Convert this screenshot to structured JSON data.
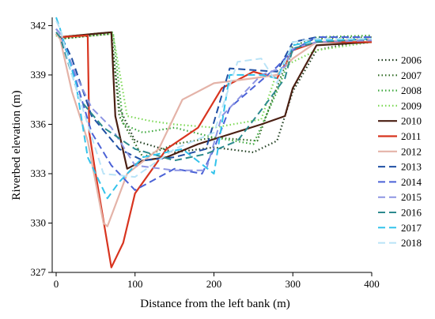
{
  "chart_data": {
    "type": "line",
    "title": "",
    "xlabel": "Distance from the left bank (m)",
    "ylabel": "Riverbed elevation (m)",
    "xlim": [
      -5,
      400
    ],
    "ylim": [
      327,
      342.5
    ],
    "xticks": [
      0,
      100,
      200,
      300,
      400
    ],
    "yticks": [
      327,
      330,
      333,
      336,
      339,
      342
    ],
    "grid": false,
    "legend_position": "right",
    "series": [
      {
        "name": "2006",
        "color": "#1f3d1f",
        "dash": "1.5,3",
        "width": 2.2,
        "x": [
          0,
          5,
          70,
          80,
          100,
          150,
          200,
          250,
          280,
          300,
          330,
          400
        ],
        "y": [
          341.5,
          341.2,
          341.5,
          337.0,
          335.0,
          334.3,
          334.6,
          334.3,
          335.0,
          338.0,
          340.5,
          341.2
        ]
      },
      {
        "name": "2007",
        "color": "#2f6b23",
        "dash": "1.5,3",
        "width": 2.2,
        "x": [
          0,
          5,
          70,
          80,
          110,
          150,
          200,
          255,
          270,
          300,
          330,
          400
        ],
        "y": [
          341.5,
          341.3,
          341.6,
          336.5,
          334.0,
          334.8,
          335.2,
          335.0,
          337.0,
          340.8,
          341.2,
          341.3
        ]
      },
      {
        "name": "2008",
        "color": "#3da83d",
        "dash": "1.5,3",
        "width": 2.2,
        "x": [
          0,
          5,
          72,
          85,
          110,
          150,
          200,
          250,
          280,
          300,
          330,
          400
        ],
        "y": [
          341.5,
          341.3,
          341.6,
          336.0,
          335.5,
          335.8,
          335.2,
          334.8,
          338.0,
          340.5,
          341.3,
          341.4
        ]
      },
      {
        "name": "2009",
        "color": "#7ed957",
        "dash": "1.5,3",
        "width": 2.2,
        "x": [
          0,
          5,
          72,
          90,
          120,
          150,
          200,
          260,
          280,
          300,
          330,
          400
        ],
        "y": [
          341.4,
          341.2,
          341.5,
          336.5,
          336.2,
          336.0,
          335.8,
          336.3,
          339.2,
          339.8,
          340.5,
          341.0
        ]
      },
      {
        "name": "2010",
        "color": "#4a1f12",
        "dash": "",
        "width": 2.2,
        "x": [
          0,
          5,
          70,
          75,
          90,
          110,
          140,
          180,
          220,
          260,
          290,
          300,
          330,
          400
        ],
        "y": [
          341.5,
          341.3,
          341.6,
          336.5,
          333.3,
          333.8,
          334.0,
          334.8,
          335.4,
          336.0,
          336.5,
          338.2,
          340.8,
          341.0
        ]
      },
      {
        "name": "2011",
        "color": "#d8341f",
        "dash": "",
        "width": 2.2,
        "x": [
          0,
          5,
          40,
          42,
          50,
          70,
          85,
          100,
          140,
          180,
          210,
          250,
          280,
          300,
          330,
          400
        ],
        "y": [
          341.5,
          341.3,
          341.4,
          335.5,
          333.0,
          327.3,
          328.8,
          331.8,
          334.5,
          335.8,
          338.2,
          339.2,
          338.8,
          340.5,
          341.0,
          341.0
        ]
      },
      {
        "name": "2012",
        "color": "#e4b3a8",
        "dash": "",
        "width": 2.2,
        "x": [
          0,
          5,
          20,
          40,
          60,
          65,
          90,
          130,
          160,
          200,
          250,
          280,
          300,
          330,
          400
        ],
        "y": [
          341.5,
          341.2,
          338.0,
          335.0,
          330.0,
          329.8,
          333.0,
          334.5,
          337.5,
          338.5,
          338.8,
          339.0,
          340.0,
          341.0,
          341.2
        ]
      },
      {
        "name": "2013",
        "color": "#1f4fa3",
        "dash": "9,5",
        "width": 2.0,
        "x": [
          0,
          5,
          20,
          45,
          80,
          110,
          150,
          190,
          220,
          280,
          300,
          330,
          400
        ],
        "y": [
          341.8,
          341.5,
          340.0,
          336.5,
          334.5,
          333.8,
          334.0,
          334.5,
          339.4,
          339.2,
          341.0,
          341.3,
          341.3
        ]
      },
      {
        "name": "2014",
        "color": "#4b62d6",
        "dash": "9,5",
        "width": 2.0,
        "x": [
          0,
          5,
          20,
          45,
          70,
          100,
          150,
          185,
          200,
          220,
          280,
          300,
          330,
          400
        ],
        "y": [
          341.8,
          341.5,
          339.5,
          335.5,
          333.5,
          332.0,
          333.3,
          333.0,
          334.5,
          337.0,
          339.5,
          340.5,
          341.3,
          341.3
        ]
      },
      {
        "name": "2015",
        "color": "#8d95e3",
        "dash": "9,5",
        "width": 2.0,
        "x": [
          0,
          5,
          25,
          45,
          70,
          100,
          150,
          190,
          210,
          260,
          290,
          300,
          330,
          400
        ],
        "y": [
          341.8,
          341.5,
          339.0,
          337.0,
          335.8,
          333.5,
          333.2,
          333.2,
          336.5,
          339.0,
          339.5,
          340.6,
          341.0,
          341.1
        ]
      },
      {
        "name": "2016",
        "color": "#2c8a8e",
        "dash": "9,5",
        "width": 2.0,
        "x": [
          0,
          5,
          30,
          60,
          100,
          150,
          190,
          230,
          270,
          290,
          300,
          330,
          400
        ],
        "y": [
          341.6,
          341.3,
          337.5,
          335.8,
          334.5,
          333.8,
          334.2,
          335.0,
          337.5,
          338.8,
          340.6,
          341.0,
          341.2
        ]
      },
      {
        "name": "2017",
        "color": "#33c3eb",
        "dash": "9,5",
        "width": 2.0,
        "x": [
          0,
          5,
          25,
          40,
          65,
          80,
          110,
          160,
          200,
          220,
          260,
          280,
          300,
          330,
          400
        ],
        "y": [
          342.5,
          341.8,
          338.5,
          334.0,
          331.5,
          332.5,
          334.0,
          334.5,
          333.0,
          339.0,
          339.0,
          338.8,
          340.8,
          341.1,
          341.2
        ]
      },
      {
        "name": "2018",
        "color": "#b9e3f7",
        "dash": "9,5",
        "width": 2.0,
        "x": [
          0,
          5,
          20,
          40,
          60,
          100,
          150,
          200,
          230,
          260,
          280,
          300,
          330,
          400
        ],
        "y": [
          342.3,
          341.8,
          339.0,
          336.0,
          333.0,
          332.8,
          334.5,
          335.5,
          339.8,
          340.0,
          338.5,
          341.0,
          341.2,
          341.2
        ]
      }
    ]
  }
}
